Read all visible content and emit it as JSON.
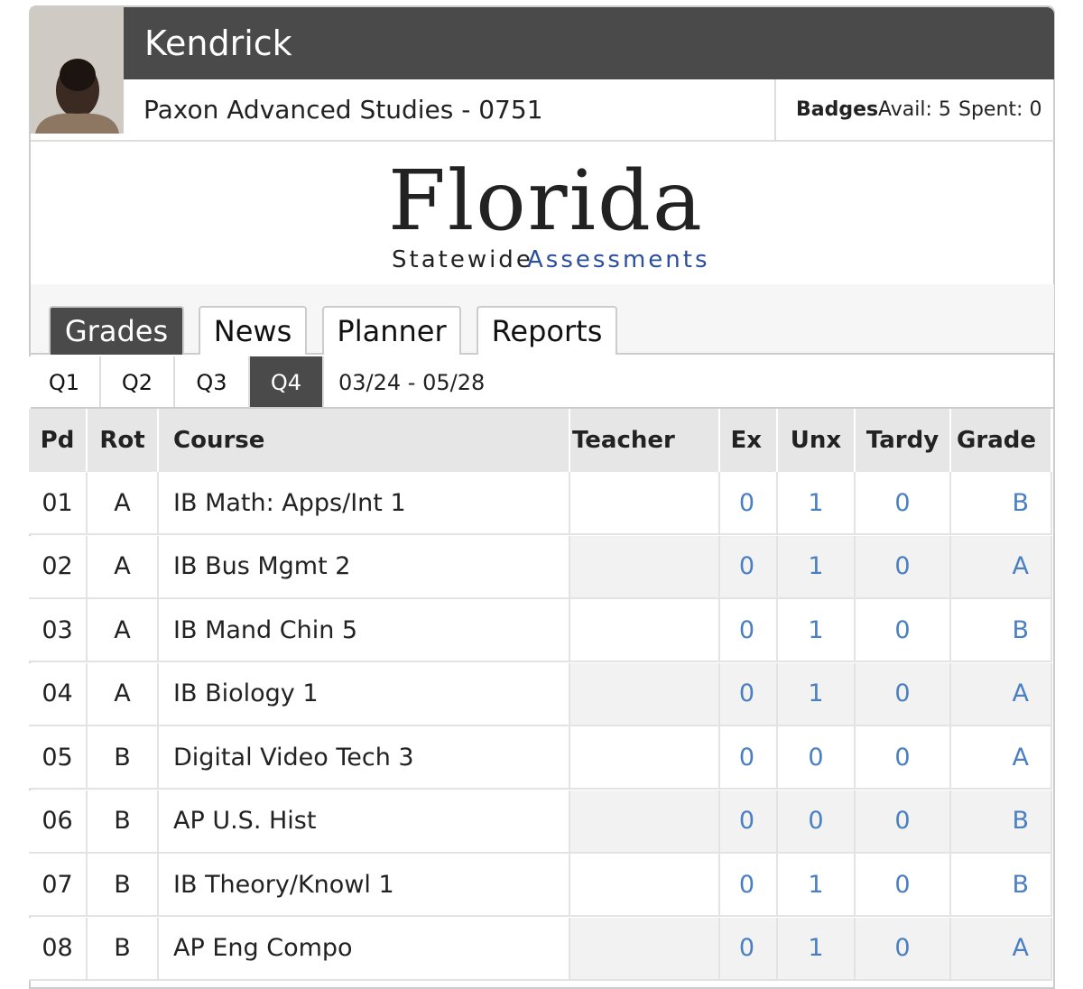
{
  "header": {
    "name": "Kendrick",
    "school": "Paxon Advanced Studies - 0751",
    "badges_label": "Badges",
    "badges_avail": "Avail: 5",
    "badges_spent": "Spent: 0"
  },
  "logo": {
    "title": "Florida",
    "subtitle_black": "Statewide",
    "subtitle_blue": "Assessments"
  },
  "tabs": [
    "Grades",
    "News",
    "Planner",
    "Reports"
  ],
  "quarters": [
    "Q1",
    "Q2",
    "Q3",
    "Q4"
  ],
  "date_range": "03/24 - 05/28",
  "table": {
    "headers": [
      "Pd",
      "Rot",
      "Course",
      "Teacher",
      "Ex",
      "Unx",
      "Tardy",
      "Grade"
    ],
    "rows": [
      [
        "01",
        "A",
        "IB Math: Apps/Int 1",
        null,
        0,
        1,
        0,
        "B"
      ],
      [
        "02",
        "A",
        "IB Bus Mgmt 2",
        null,
        0,
        1,
        0,
        "A"
      ],
      [
        "03",
        "A",
        "IB Mand Chin 5",
        null,
        0,
        1,
        0,
        "B"
      ],
      [
        "04",
        "A",
        "IB Biology 1",
        null,
        0,
        1,
        0,
        "A"
      ],
      [
        "05",
        "B",
        "Digital Video Tech 3",
        null,
        0,
        0,
        0,
        "A"
      ],
      [
        "06",
        "B",
        "AP U.S. Hist",
        null,
        0,
        0,
        0,
        "B"
      ],
      [
        "07",
        "B",
        "IB Theory/Knowl 1",
        null,
        0,
        1,
        0,
        "B"
      ],
      [
        "08",
        "B",
        "AP Eng Compo",
        null,
        0,
        1,
        0,
        "A"
      ]
    ]
  }
}
